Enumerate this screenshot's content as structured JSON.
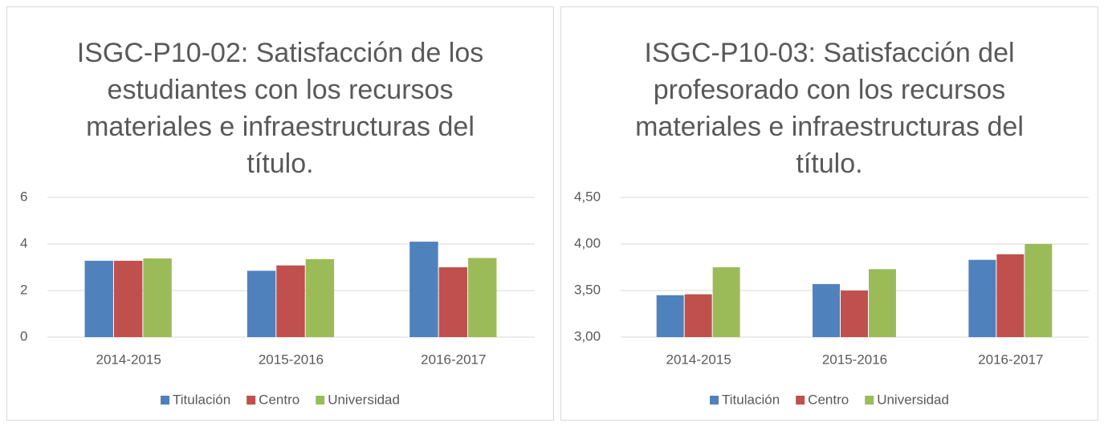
{
  "chart_data": [
    {
      "type": "bar",
      "title": "ISGC-P10-02: Satisfacción de los estudiantes con los recursos materiales e infraestructuras del título.",
      "categories": [
        "2014-2015",
        "2015-2016",
        "2016-2017"
      ],
      "series": [
        {
          "name": "Titulación",
          "color": "#4f81bd",
          "values": [
            3.28,
            2.85,
            4.1
          ]
        },
        {
          "name": "Centro",
          "color": "#c0504d",
          "values": [
            3.28,
            3.08,
            3.0
          ]
        },
        {
          "name": "Universidad",
          "color": "#9bbb59",
          "values": [
            3.38,
            3.35,
            3.4
          ]
        }
      ],
      "ylim": [
        0,
        6
      ],
      "yticks": [
        0,
        2,
        4,
        6
      ],
      "grid": true,
      "legend": "bottom"
    },
    {
      "type": "bar",
      "title": "ISGC-P10-03: Satisfacción del profesorado con los recursos materiales e infraestructuras del título.",
      "categories": [
        "2014-2015",
        "2015-2016",
        "2016-2017"
      ],
      "series": [
        {
          "name": "Titulación",
          "color": "#4f81bd",
          "values": [
            3.45,
            3.57,
            3.83
          ]
        },
        {
          "name": "Centro",
          "color": "#c0504d",
          "values": [
            3.46,
            3.5,
            3.89
          ]
        },
        {
          "name": "Universidad",
          "color": "#9bbb59",
          "values": [
            3.75,
            3.73,
            4.0
          ]
        }
      ],
      "ylim": [
        3,
        4.5
      ],
      "yticks": [
        {
          "value": 3,
          "label": "3,00"
        },
        {
          "value": 3.5,
          "label": "3,50"
        },
        {
          "value": 4,
          "label": "4,00"
        },
        {
          "value": 4.5,
          "label": "4,50"
        }
      ],
      "grid": true,
      "legend": "bottom"
    }
  ]
}
